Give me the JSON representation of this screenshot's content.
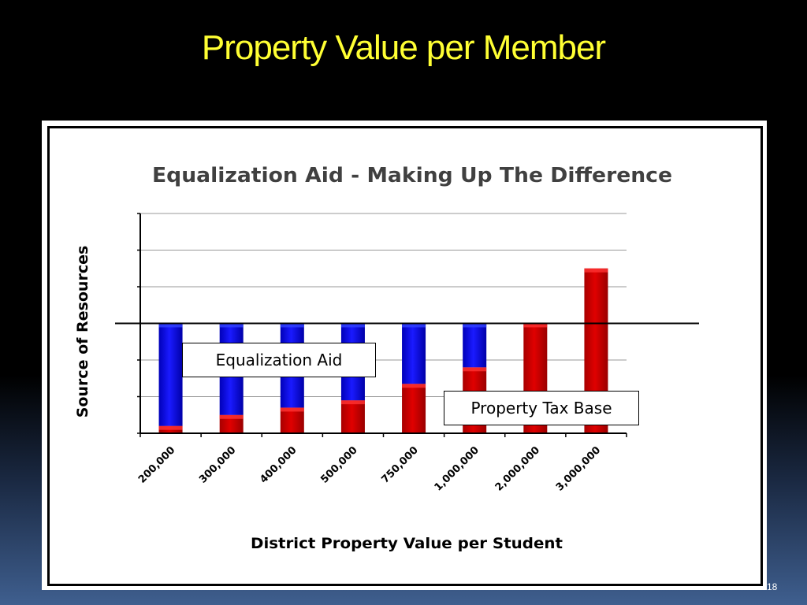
{
  "slide": {
    "title": "Property Value per Member",
    "number": "18"
  },
  "chart_data": {
    "type": "bar",
    "stacked": true,
    "title": "Equalization Aid - Making Up The Difference",
    "xlabel": "District Property Value per Student",
    "ylabel": "Source of Resources",
    "categories": [
      "200,000",
      "300,000",
      "400,000",
      "500,000",
      "750,000",
      "1,000,000",
      "2,000,000",
      "3,000,000"
    ],
    "series": [
      {
        "name": "Property Tax Base",
        "color": "#cc0000",
        "values": [
          0.4,
          1.0,
          1.4,
          1.8,
          2.7,
          3.6,
          6.0,
          9.0
        ]
      },
      {
        "name": "Equalization Aid",
        "color": "#0000ee",
        "values": [
          5.6,
          5.0,
          4.6,
          4.2,
          3.3,
          2.4,
          0,
          0
        ]
      }
    ],
    "reference_line": 6,
    "ylim": [
      0,
      12
    ],
    "gridlines": true,
    "y_tick_labels": false,
    "annotations": [
      {
        "text": "Equalization Aid",
        "series": "Equalization Aid"
      },
      {
        "text": "Property Tax Base",
        "series": "Property Tax Base"
      }
    ],
    "colors": {
      "tax": "#cc0000",
      "aid": "#0000ee",
      "grid": "#999999"
    }
  }
}
